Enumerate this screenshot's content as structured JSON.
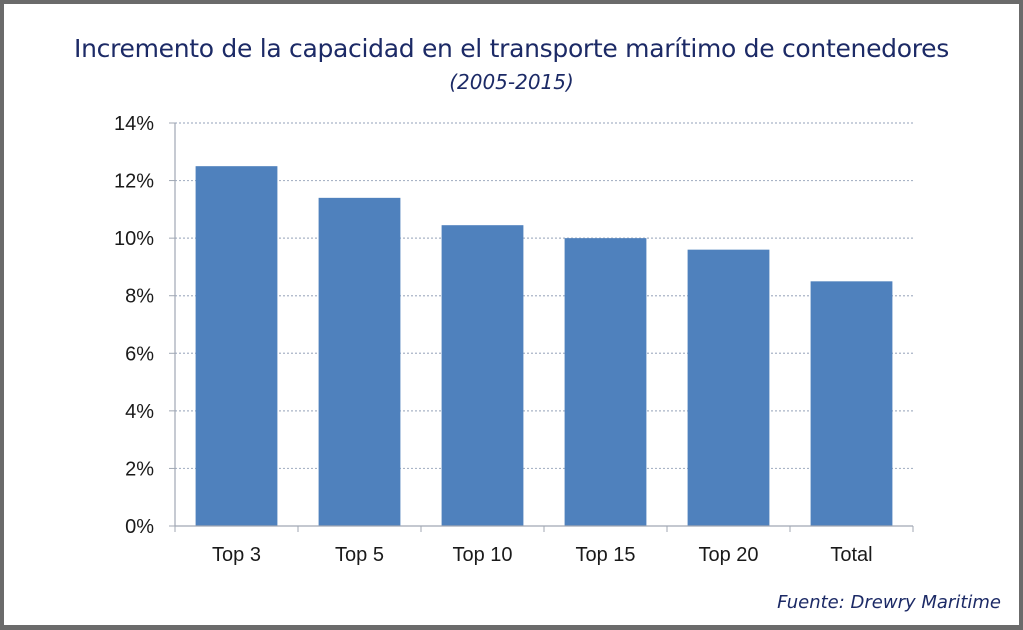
{
  "chart_data": {
    "type": "bar",
    "title": "Incremento de la capacidad en el transporte marítimo de contenedores",
    "subtitle": "(2005-2015)",
    "source": "Fuente: Drewry Maritime",
    "xlabel": "",
    "ylabel": "",
    "categories": [
      "Top 3",
      "Top 5",
      "Top 10",
      "Top 15",
      "Top 20",
      "Total"
    ],
    "values": [
      12.5,
      11.4,
      10.45,
      10.0,
      9.6,
      8.5
    ],
    "ylim": [
      0,
      14
    ],
    "yticks": [
      0,
      2,
      4,
      6,
      8,
      10,
      12,
      14
    ],
    "ytick_labels": [
      "0%",
      "2%",
      "4%",
      "6%",
      "8%",
      "10%",
      "12%",
      "14%"
    ],
    "grid": "horizontal-dotted",
    "legend": "none",
    "bar_color": "#4f81bd"
  }
}
